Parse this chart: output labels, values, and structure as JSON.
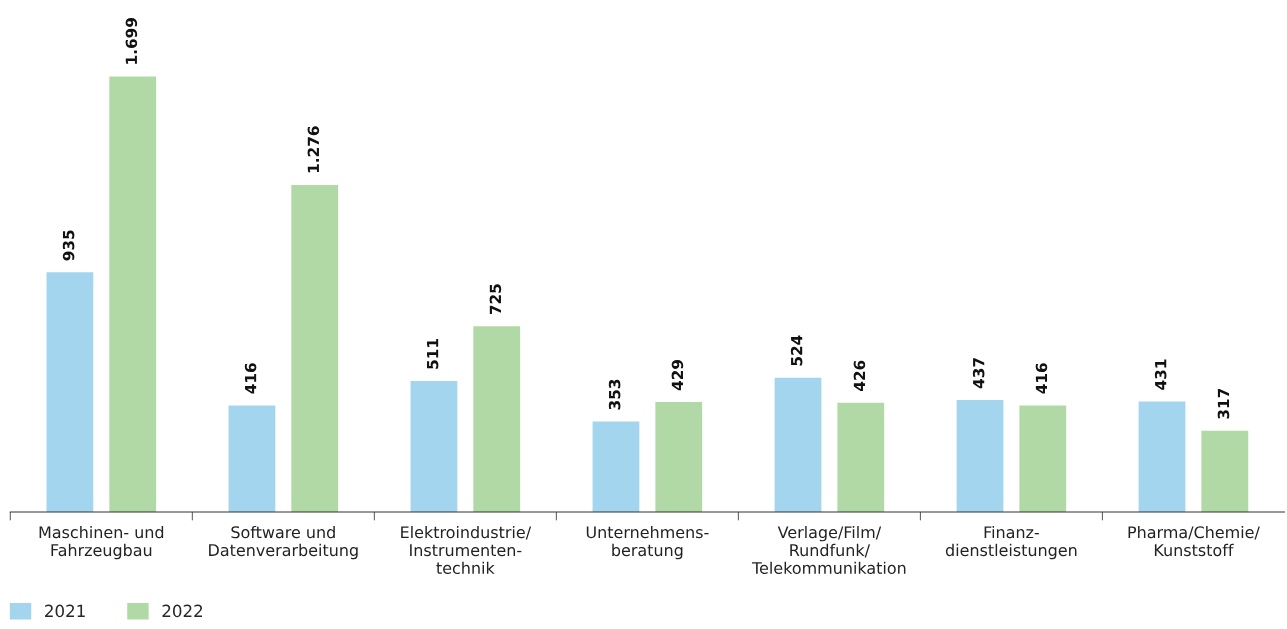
{
  "chart_data": {
    "type": "bar",
    "categories": [
      "Maschinen- und\nFahrzeugbau",
      "Software und\nDatenverarbeitung",
      "Elektroindustrie/\nInstrumenten-\ntechnik",
      "Unternehmens-\nberatung",
      "Verlage/Film/\nRundfunk/\nTelekommunikation",
      "Finanz-\ndienstleistungen",
      "Pharma/Chemie/\nKunststoff"
    ],
    "series": [
      {
        "name": "2021",
        "color": "#a3d5ef",
        "values": [
          935,
          416,
          511,
          353,
          524,
          437,
          431
        ],
        "value_labels": [
          "935",
          "416",
          "511",
          "353",
          "524",
          "437",
          "431"
        ]
      },
      {
        "name": "2022",
        "color": "#b0d9a6",
        "values": [
          1699,
          1276,
          725,
          429,
          426,
          416,
          317
        ],
        "value_labels": [
          "1.699",
          "1.276",
          "725",
          "429",
          "426",
          "416",
          "317"
        ]
      }
    ],
    "legend": "bottom left",
    "grid": false
  }
}
